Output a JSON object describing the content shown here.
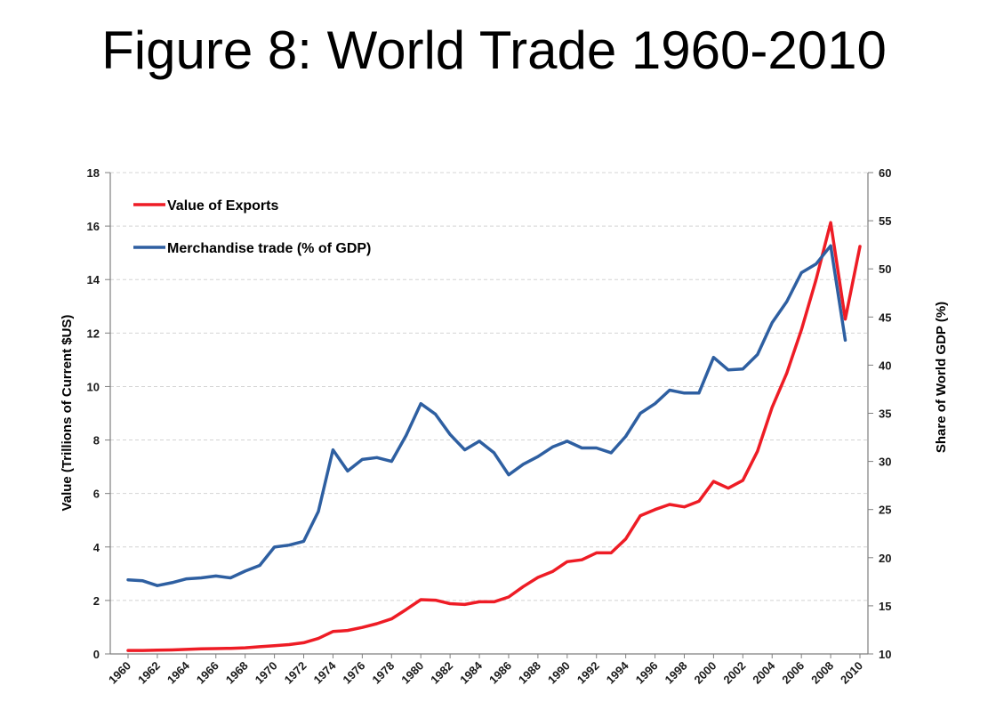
{
  "slide": {
    "title": "Figure 8: World Trade 1960-2010"
  },
  "chart_data": {
    "type": "line",
    "y_axis_left": {
      "label": "Value (Trillions of Current $US)",
      "range": [
        0,
        18
      ],
      "ticks": [
        0,
        2,
        4,
        6,
        8,
        10,
        12,
        14,
        16,
        18
      ]
    },
    "y_axis_right": {
      "label": "Share of World GDP (%)",
      "range": [
        10,
        60
      ],
      "ticks": [
        10,
        15,
        20,
        25,
        30,
        35,
        40,
        45,
        50,
        55,
        60
      ]
    },
    "x_axis": {
      "label": "",
      "range": [
        1960,
        2010
      ],
      "tick_labels": [
        "1960",
        "1962",
        "1964",
        "1966",
        "1968",
        "1970",
        "1972",
        "1974",
        "1976",
        "1978",
        "1980",
        "1982",
        "1984",
        "1986",
        "1988",
        "1990",
        "1992",
        "1994",
        "1996",
        "1998",
        "2000",
        "2002",
        "2004",
        "2006",
        "2008",
        "2010"
      ]
    },
    "grid": "horizontal dashed",
    "legend_position": "top-left",
    "series": [
      {
        "name": "Value of Exports",
        "axis": "left",
        "color": "#ee1c25",
        "x": [
          1960,
          1961,
          1962,
          1963,
          1964,
          1965,
          1966,
          1967,
          1968,
          1969,
          1970,
          1971,
          1972,
          1973,
          1974,
          1975,
          1976,
          1977,
          1978,
          1979,
          1980,
          1981,
          1982,
          1983,
          1984,
          1985,
          1986,
          1987,
          1988,
          1989,
          1990,
          1991,
          1992,
          1993,
          1994,
          1995,
          1996,
          1997,
          1998,
          1999,
          2000,
          2001,
          2002,
          2003,
          2004,
          2005,
          2006,
          2007,
          2008,
          2009,
          2010
        ],
        "values": [
          0.13,
          0.13,
          0.14,
          0.15,
          0.17,
          0.19,
          0.2,
          0.21,
          0.23,
          0.27,
          0.31,
          0.35,
          0.42,
          0.58,
          0.84,
          0.88,
          0.99,
          1.13,
          1.31,
          1.66,
          2.03,
          2.01,
          1.88,
          1.85,
          1.95,
          1.95,
          2.13,
          2.52,
          2.86,
          3.08,
          3.45,
          3.52,
          3.78,
          3.78,
          4.3,
          5.17,
          5.4,
          5.59,
          5.5,
          5.71,
          6.45,
          6.2,
          6.49,
          7.58,
          9.22,
          10.5,
          12.12,
          13.99,
          16.13,
          12.52,
          15.24
        ]
      },
      {
        "name": "Merchandise trade (% of GDP)",
        "axis": "right",
        "color": "#2e5fa1",
        "x": [
          1960,
          1961,
          1962,
          1963,
          1964,
          1965,
          1966,
          1967,
          1968,
          1969,
          1970,
          1971,
          1972,
          1973,
          1974,
          1975,
          1976,
          1977,
          1978,
          1979,
          1980,
          1981,
          1982,
          1983,
          1984,
          1985,
          1986,
          1987,
          1988,
          1989,
          1990,
          1991,
          1992,
          1993,
          1994,
          1995,
          1996,
          1997,
          1998,
          1999,
          2000,
          2001,
          2002,
          2003,
          2004,
          2005,
          2006,
          2007,
          2008,
          2009
        ],
        "values": [
          17.7,
          17.6,
          17.1,
          17.4,
          17.8,
          17.9,
          18.1,
          17.9,
          18.6,
          19.2,
          21.1,
          21.3,
          21.7,
          24.8,
          31.2,
          29.0,
          30.2,
          30.4,
          30.0,
          32.7,
          36.0,
          34.9,
          32.8,
          31.2,
          32.1,
          30.9,
          28.6,
          29.7,
          30.5,
          31.5,
          32.1,
          31.4,
          31.4,
          30.9,
          32.6,
          35.0,
          36.0,
          37.4,
          37.1,
          37.1,
          40.8,
          39.5,
          39.6,
          41.1,
          44.4,
          46.6,
          49.6,
          50.5,
          52.4,
          42.6
        ]
      }
    ]
  }
}
